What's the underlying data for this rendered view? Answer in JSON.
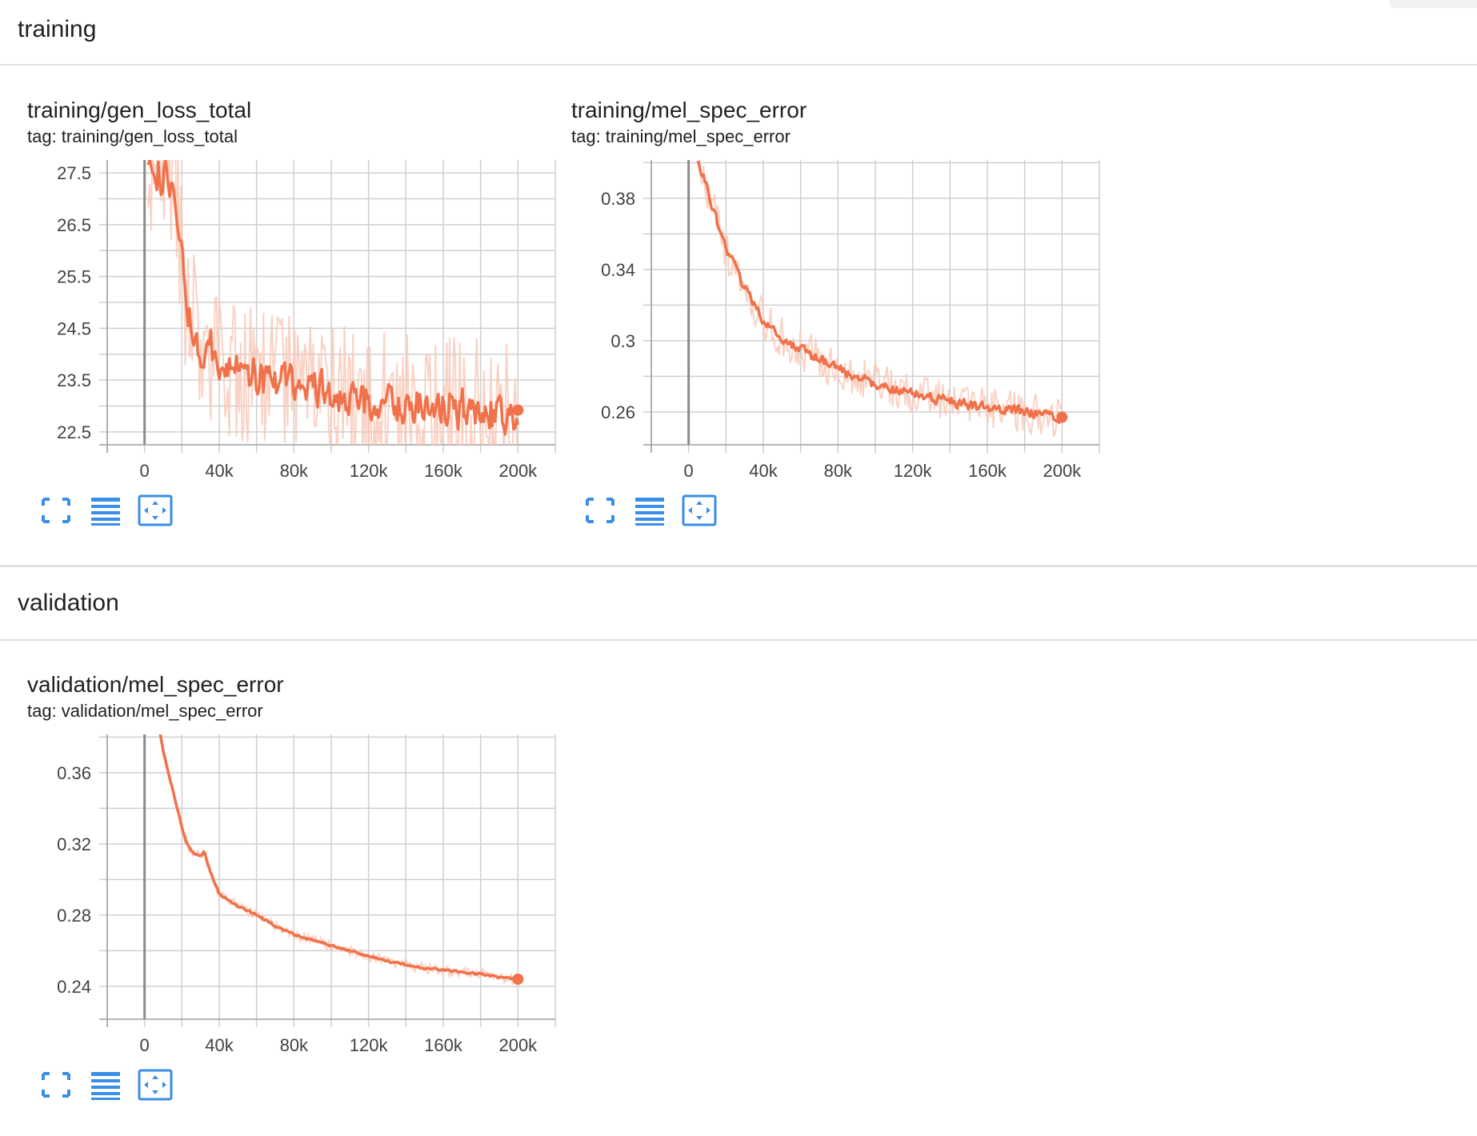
{
  "sections": {
    "training": {
      "title": "training"
    },
    "validation": {
      "title": "validation"
    }
  },
  "colors": {
    "series": "#f0714a",
    "series_light": "#f9c7b5",
    "grid": "#cfcfcf",
    "accent_icon": "#3b8ee8"
  },
  "icons": [
    "expand-icon",
    "data-table-icon",
    "fit-domain-icon"
  ],
  "cards": {
    "gen_loss": {
      "title": "training/gen_loss_total",
      "tag": "tag: training/gen_loss_total"
    },
    "train_mel": {
      "title": "training/mel_spec_error",
      "tag": "tag: training/mel_spec_error"
    },
    "val_mel": {
      "title": "validation/mel_spec_error",
      "tag": "tag: validation/mel_spec_error"
    }
  },
  "chart_data": [
    {
      "id": "gen_loss",
      "type": "line",
      "title": "training/gen_loss_total",
      "xlabel": "",
      "ylabel": "",
      "xlim": [
        -20000,
        220000
      ],
      "ylim": [
        22.25,
        27.75
      ],
      "x_ticks": [
        0,
        40000,
        80000,
        120000,
        160000,
        200000
      ],
      "x_tick_labels": [
        "0",
        "40k",
        "80k",
        "120k",
        "160k",
        "200k"
      ],
      "y_ticks": [
        22.5,
        23.5,
        24.5,
        25.5,
        26.5,
        27.5
      ],
      "y_tick_labels": [
        "22.5",
        "23.5",
        "24.5",
        "25.5",
        "26.5",
        "27.5"
      ],
      "grid": true,
      "series": [
        {
          "x": [
            2000,
            8000,
            14000,
            18000,
            22000,
            26000,
            30000,
            35000,
            40000,
            45000,
            50000,
            55000,
            60000,
            70000,
            80000,
            90000,
            100000,
            110000,
            120000,
            130000,
            140000,
            150000,
            160000,
            170000,
            180000,
            190000,
            200000
          ],
          "values": [
            27.8,
            27.5,
            27.2,
            26.6,
            25.0,
            24.6,
            24.2,
            24.1,
            23.9,
            23.8,
            23.7,
            23.6,
            23.6,
            23.5,
            23.4,
            23.3,
            23.2,
            23.15,
            23.1,
            23.05,
            23.0,
            23.0,
            22.95,
            22.95,
            22.9,
            22.9,
            22.92
          ],
          "noise": 0.55,
          "raw_noise": 1.4
        }
      ]
    },
    {
      "id": "train_mel",
      "type": "line",
      "title": "training/mel_spec_error",
      "xlabel": "",
      "ylabel": "",
      "xlim": [
        -20000,
        220000
      ],
      "ylim": [
        0.2415,
        0.4015
      ],
      "x_ticks": [
        0,
        40000,
        80000,
        120000,
        160000,
        200000
      ],
      "x_tick_labels": [
        "0",
        "40k",
        "80k",
        "120k",
        "160k",
        "200k"
      ],
      "y_ticks": [
        0.26,
        0.3,
        0.34,
        0.38
      ],
      "y_tick_labels": [
        "0.26",
        "0.3",
        "0.34",
        "0.38"
      ],
      "grid": true,
      "series": [
        {
          "x": [
            5000,
            10000,
            15000,
            20000,
            25000,
            30000,
            40000,
            50000,
            60000,
            70000,
            80000,
            90000,
            100000,
            110000,
            120000,
            130000,
            140000,
            150000,
            160000,
            170000,
            180000,
            190000,
            200000
          ],
          "values": [
            0.402,
            0.385,
            0.368,
            0.352,
            0.34,
            0.329,
            0.312,
            0.302,
            0.295,
            0.289,
            0.284,
            0.28,
            0.276,
            0.273,
            0.27,
            0.268,
            0.266,
            0.264,
            0.262,
            0.261,
            0.26,
            0.259,
            0.257
          ],
          "noise": 0.004,
          "raw_noise": 0.012
        }
      ]
    },
    {
      "id": "val_mel",
      "type": "line",
      "title": "validation/mel_spec_error",
      "xlabel": "",
      "ylabel": "",
      "xlim": [
        -20000,
        220000
      ],
      "ylim": [
        0.2215,
        0.3815
      ],
      "x_ticks": [
        0,
        40000,
        80000,
        120000,
        160000,
        200000
      ],
      "x_tick_labels": [
        "0",
        "40k",
        "80k",
        "120k",
        "160k",
        "200k"
      ],
      "y_ticks": [
        0.24,
        0.28,
        0.32,
        0.36
      ],
      "y_tick_labels": [
        "0.24",
        "0.28",
        "0.32",
        "0.36"
      ],
      "grid": true,
      "series": [
        {
          "x": [
            8000,
            10000,
            14000,
            18000,
            22000,
            26000,
            30000,
            32000,
            35000,
            40000,
            50000,
            60000,
            70000,
            80000,
            90000,
            100000,
            110000,
            120000,
            130000,
            140000,
            150000,
            160000,
            170000,
            180000,
            190000,
            200000
          ],
          "values": [
            0.384,
            0.372,
            0.355,
            0.338,
            0.322,
            0.315,
            0.313,
            0.316,
            0.305,
            0.292,
            0.285,
            0.28,
            0.274,
            0.269,
            0.266,
            0.263,
            0.26,
            0.257,
            0.254,
            0.252,
            0.25,
            0.249,
            0.248,
            0.247,
            0.245,
            0.244
          ],
          "noise": 0.0008,
          "raw_noise": 0.003
        }
      ]
    }
  ]
}
